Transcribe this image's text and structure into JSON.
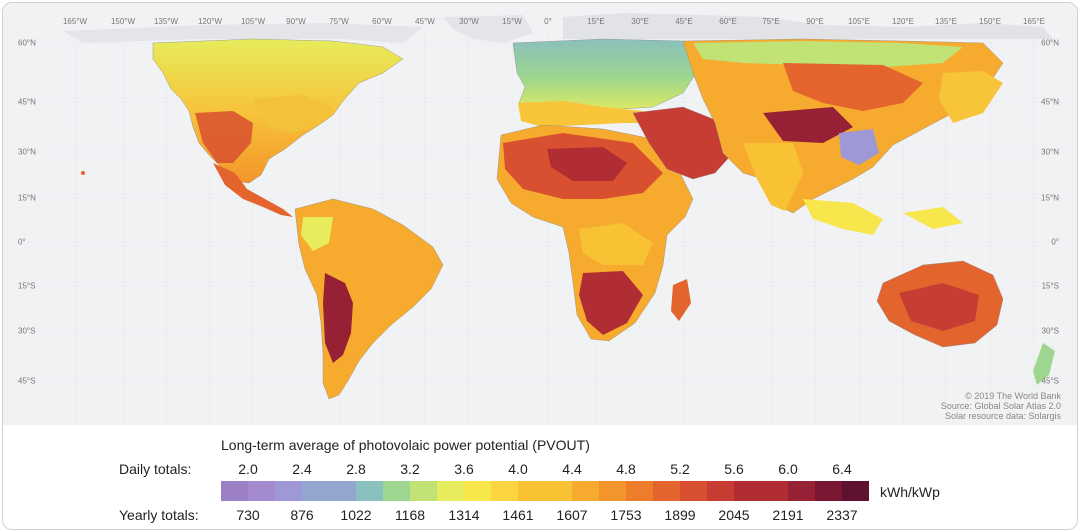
{
  "longitude_labels": [
    "165°W",
    "150°W",
    "135°W",
    "120°W",
    "105°W",
    "90°W",
    "75°W",
    "60°W",
    "45°W",
    "30°W",
    "15°W",
    "0°",
    "15°E",
    "30°E",
    "45°E",
    "60°E",
    "75°E",
    "90°E",
    "105°E",
    "120°E",
    "135°E",
    "150°E",
    "165°E"
  ],
  "latitude_labels": [
    "60°N",
    "45°N",
    "30°N",
    "15°N",
    "0°",
    "15°S",
    "30°S",
    "45°S"
  ],
  "credit": {
    "line1": "© 2019 The World Bank",
    "line2": "Source: Global Solar Atlas 2.0",
    "line3": "Solar resource data: Solargis"
  },
  "legend": {
    "title": "Long-term average of photovolaic power potential (PVOUT)",
    "daily_label": "Daily totals:",
    "yearly_label": "Yearly totals:",
    "unit": "kWh/kWp",
    "daily_ticks": [
      "2.0",
      "2.4",
      "2.8",
      "3.2",
      "3.6",
      "4.0",
      "4.4",
      "4.8",
      "5.2",
      "5.6",
      "6.0",
      "6.4"
    ],
    "yearly_ticks": [
      "730",
      "876",
      "1022",
      "1168",
      "1314",
      "1461",
      "1607",
      "1753",
      "1899",
      "2045",
      "2191",
      "2337"
    ],
    "colors": [
      "#9a7fc4",
      "#a48bd0",
      "#9e98d6",
      "#93a6cf",
      "#8ac0bd",
      "#9cd68f",
      "#c1e275",
      "#e6ec5c",
      "#f7e64c",
      "#fbd53f",
      "#f9c234",
      "#f7ab2e",
      "#f3952a",
      "#ee7d2b",
      "#e4642e",
      "#d8502f",
      "#c83d33",
      "#b02d33",
      "#962134",
      "#7a1834",
      "#5e1230"
    ]
  }
}
